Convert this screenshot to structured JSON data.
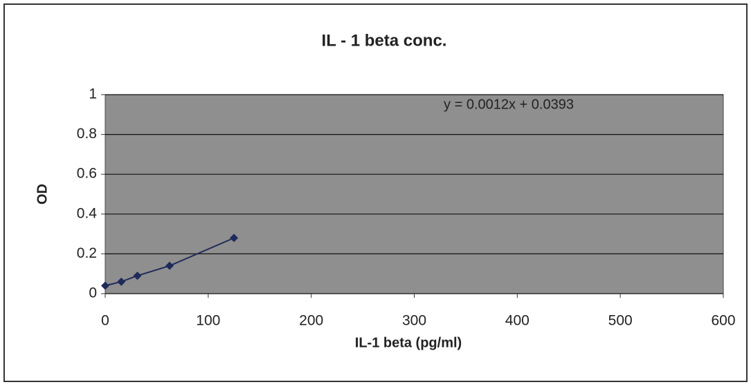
{
  "chart_data": {
    "type": "line",
    "title": "IL - 1 beta conc.",
    "x_label": "IL-1 beta (pg/ml)",
    "y_label": "OD",
    "annotation": "y = 0.0012x + 0.0393",
    "series": [
      {
        "name": "OD",
        "color": "#1f2a5a",
        "x": [
          0,
          15.6,
          31.25,
          62.5,
          125
        ],
        "values": [
          0.04,
          0.06,
          0.09,
          0.14,
          0.28
        ]
      }
    ],
    "xlim": [
      0,
      600
    ],
    "xticks": [
      0,
      100,
      200,
      300,
      400,
      500,
      600
    ],
    "ylim": [
      0,
      1
    ],
    "yticks": [
      0,
      0.2,
      0.4,
      0.6,
      0.8,
      1
    ],
    "grid": true
  }
}
